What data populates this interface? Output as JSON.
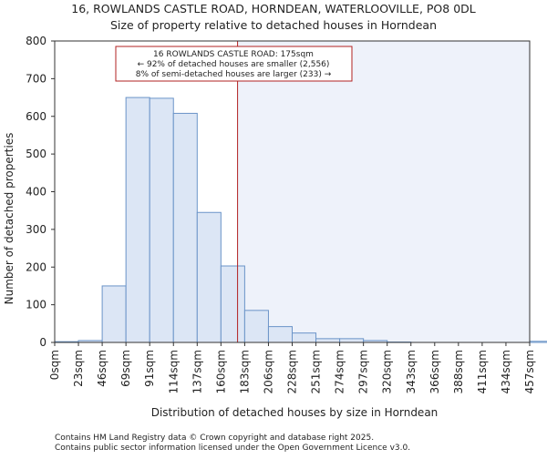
{
  "chart_data": {
    "type": "bar",
    "title": "16, ROWLANDS CASTLE ROAD, HORNDEAN, WATERLOOVILLE, PO8 0DL",
    "subtitle": "Size of property relative to detached houses in Horndean",
    "xlabel": "Distribution of detached houses by size in Horndean",
    "ylabel": "Number of detached properties",
    "categories": [
      "0sqm",
      "23sqm",
      "46sqm",
      "69sqm",
      "91sqm",
      "114sqm",
      "137sqm",
      "160sqm",
      "183sqm",
      "206sqm",
      "228sqm",
      "251sqm",
      "274sqm",
      "297sqm",
      "320sqm",
      "343sqm",
      "366sqm",
      "388sqm",
      "411sqm",
      "434sqm",
      "457sqm"
    ],
    "values": [
      2,
      5,
      150,
      650,
      648,
      608,
      345,
      203,
      85,
      42,
      25,
      10,
      10,
      5,
      1,
      0,
      0,
      0,
      0,
      0,
      3
    ],
    "ylim": [
      0,
      800
    ],
    "yticks": [
      0,
      100,
      200,
      300,
      400,
      500,
      600,
      700,
      800
    ],
    "property_marker_bin": 7.7,
    "annotation": {
      "line1": "16 ROWLANDS CASTLE ROAD: 175sqm",
      "line2": "← 92% of detached houses are smaller (2,556)",
      "line3": "8% of semi-detached houses are larger (233) →"
    },
    "colors": {
      "bar_fill": "#dce6f5",
      "bar_stroke": "#6b94c8",
      "right_shade": "#eef2fa",
      "marker": "#b22222"
    }
  },
  "footer": {
    "line1": "Contains HM Land Registry data © Crown copyright and database right 2025.",
    "line2": "Contains public sector information licensed under the Open Government Licence v3.0."
  }
}
